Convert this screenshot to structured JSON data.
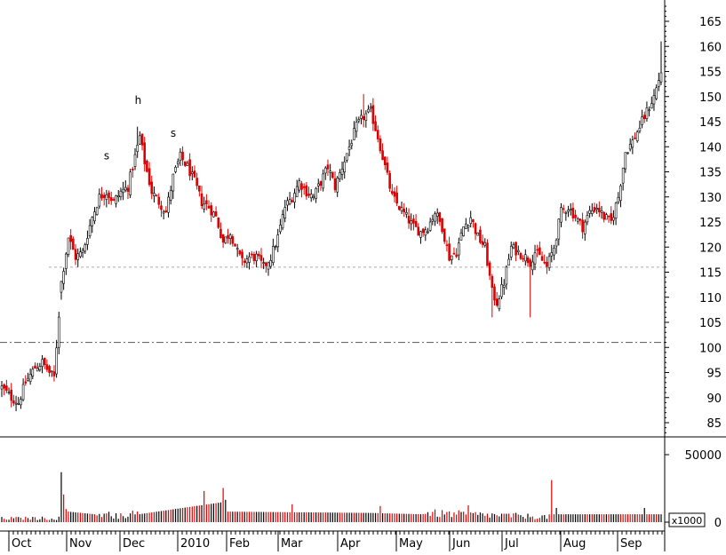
{
  "chart_data": {
    "type": "candlestick",
    "price_axis": {
      "ticks": [
        "165",
        "160",
        "155",
        "150",
        "145",
        "140",
        "135",
        "130",
        "125",
        "120",
        "115",
        "110",
        "105",
        "100",
        "95",
        "90",
        "85"
      ],
      "tick_values": [
        165,
        160,
        155,
        150,
        145,
        140,
        135,
        130,
        125,
        120,
        115,
        110,
        105,
        100,
        95,
        90,
        85
      ],
      "range": [
        82,
        169
      ]
    },
    "volume_axis": {
      "ticks": [
        "50000",
        "0"
      ],
      "tick_values": [
        50000,
        0
      ],
      "max": 62000,
      "multiplier_label": "x1000"
    },
    "months": [
      "Oct",
      "Nov",
      "Dec",
      "2010",
      "Feb",
      "Mar",
      "Apr",
      "May",
      "Jun",
      "Jul",
      "Aug",
      "Sep"
    ],
    "reference_lines": [
      {
        "value": 116,
        "style": "dotted"
      },
      {
        "value": 101,
        "style": "dash-dot"
      }
    ],
    "pattern_labels": [
      {
        "text": "s",
        "date": "Nov 24",
        "value": 137.5
      },
      {
        "text": "h",
        "date": "Dec 8",
        "value": 148.5
      },
      {
        "text": "s",
        "date": "Dec 28",
        "value": 142
      }
    ],
    "series": {
      "name": "",
      "down_color": "#dd0000",
      "up_color": "#000000",
      "keypoints": [
        [
          0,
          92
        ],
        [
          4,
          90
        ],
        [
          7,
          89
        ],
        [
          10,
          93
        ],
        [
          14,
          96
        ],
        [
          17,
          97
        ],
        [
          20,
          95
        ],
        [
          22,
          94
        ],
        [
          25,
          113
        ],
        [
          28,
          122
        ],
        [
          31,
          118
        ],
        [
          34,
          119
        ],
        [
          38,
          126
        ],
        [
          41,
          130
        ],
        [
          44,
          131
        ],
        [
          47,
          129
        ],
        [
          50,
          131
        ],
        [
          53,
          132
        ],
        [
          56,
          138
        ],
        [
          58,
          142
        ],
        [
          60,
          137
        ],
        [
          63,
          131
        ],
        [
          66,
          129
        ],
        [
          69,
          127
        ],
        [
          72,
          134
        ],
        [
          75,
          138
        ],
        [
          78,
          136
        ],
        [
          81,
          133
        ],
        [
          84,
          129
        ],
        [
          87,
          128
        ],
        [
          90,
          126
        ],
        [
          93,
          121
        ],
        [
          96,
          123
        ],
        [
          99,
          119
        ],
        [
          101,
          117
        ],
        [
          104,
          118
        ],
        [
          107,
          118
        ],
        [
          110,
          116
        ],
        [
          113,
          118
        ],
        [
          116,
          122
        ],
        [
          119,
          128
        ],
        [
          122,
          130
        ],
        [
          125,
          133
        ],
        [
          128,
          131
        ],
        [
          131,
          130
        ],
        [
          134,
          133
        ],
        [
          137,
          136
        ],
        [
          140,
          132
        ],
        [
          143,
          136
        ],
        [
          146,
          140
        ],
        [
          149,
          144
        ],
        [
          152,
          146
        ],
        [
          155,
          147
        ],
        [
          158,
          142
        ],
        [
          161,
          136
        ],
        [
          164,
          130
        ],
        [
          167,
          128
        ],
        [
          170,
          126
        ],
        [
          173,
          124
        ],
        [
          176,
          123
        ],
        [
          179,
          124
        ],
        [
          182,
          127
        ],
        [
          185,
          124
        ],
        [
          188,
          118
        ],
        [
          191,
          119
        ],
        [
          194,
          124
        ],
        [
          197,
          126
        ],
        [
          200,
          122
        ],
        [
          203,
          120
        ],
        [
          206,
          111
        ],
        [
          208,
          109
        ],
        [
          211,
          113
        ],
        [
          214,
          120
        ],
        [
          217,
          119
        ],
        [
          220,
          118
        ],
        [
          222,
          117
        ],
        [
          224,
          119
        ],
        [
          226,
          118
        ],
        [
          229,
          116
        ],
        [
          232,
          120
        ],
        [
          235,
          127
        ],
        [
          238,
          128
        ],
        [
          241,
          126
        ],
        [
          244,
          124
        ],
        [
          247,
          127
        ],
        [
          250,
          128
        ],
        [
          253,
          126
        ],
        [
          256,
          125
        ],
        [
          259,
          130
        ],
        [
          262,
          139
        ],
        [
          265,
          141
        ],
        [
          268,
          144
        ],
        [
          271,
          147
        ],
        [
          274,
          150
        ],
        [
          277,
          155
        ]
      ]
    },
    "volume_keypoints": [
      [
        0,
        2400
      ],
      [
        24,
        2600
      ],
      [
        25,
        38000
      ],
      [
        26,
        21000
      ],
      [
        27,
        10000
      ],
      [
        28,
        8000
      ],
      [
        50,
        4000
      ],
      [
        92,
        15000
      ],
      [
        93,
        26000
      ],
      [
        94,
        17000
      ],
      [
        95,
        8000
      ],
      [
        155,
        7000
      ],
      [
        230,
        3500
      ],
      [
        231,
        32000
      ],
      [
        232,
        6000
      ]
    ]
  }
}
